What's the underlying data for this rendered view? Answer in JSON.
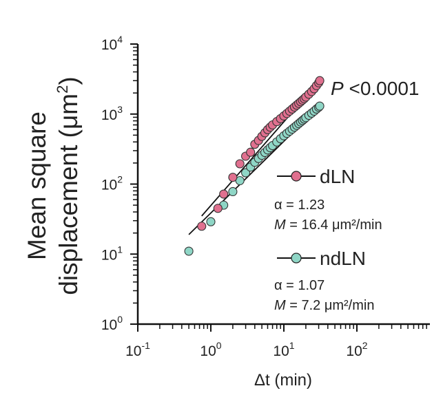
{
  "chart_data": {
    "type": "scatter",
    "xscale": "log",
    "yscale": "log",
    "xlim": [
      0.1,
      1000
    ],
    "ylim": [
      1,
      10000
    ],
    "xlabel": "Δt (min)",
    "ylabel_line1": "Mean square",
    "ylabel_line2": "displacement (μm",
    "ylabel_sup": "2",
    "ylabel_end": ")",
    "x_ticks": [
      {
        "value": 0.1,
        "base": "10",
        "exp": "-1"
      },
      {
        "value": 1,
        "base": "10",
        "exp": "0"
      },
      {
        "value": 10,
        "base": "10",
        "exp": "1"
      },
      {
        "value": 100,
        "base": "10",
        "exp": "2"
      }
    ],
    "y_ticks": [
      {
        "value": 1,
        "base": "10",
        "exp": "0"
      },
      {
        "value": 10,
        "base": "10",
        "exp": "1"
      },
      {
        "value": 100,
        "base": "10",
        "exp": "2"
      },
      {
        "value": 1000,
        "base": "10",
        "exp": "3"
      },
      {
        "value": 10000,
        "base": "10",
        "exp": "4"
      }
    ],
    "annotation": {
      "p_italic": "P",
      "p_rest": " <0.0001"
    },
    "series": [
      {
        "name": "dLN",
        "color": "#e0708f",
        "alpha_label": "α = 1.23",
        "m_italic": "M",
        "m_rest": " = 16.4 μm²/min",
        "points": [
          [
            0.75,
            25
          ],
          [
            1.25,
            45
          ],
          [
            1.5,
            72
          ],
          [
            2.0,
            125
          ],
          [
            2.5,
            195
          ],
          [
            3.0,
            250
          ],
          [
            3.5,
            285
          ],
          [
            4.0,
            370
          ],
          [
            4.5,
            420
          ],
          [
            5.0,
            480
          ],
          [
            5.5,
            540
          ],
          [
            6.0,
            600
          ],
          [
            6.5,
            650
          ],
          [
            7.0,
            700
          ],
          [
            8.0,
            780
          ],
          [
            9.0,
            860
          ],
          [
            10.0,
            940
          ],
          [
            11.0,
            1020
          ],
          [
            12.0,
            1100
          ],
          [
            13.0,
            1180
          ],
          [
            14.0,
            1260
          ],
          [
            15.0,
            1340
          ],
          [
            16.0,
            1420
          ],
          [
            17.0,
            1500
          ],
          [
            18.0,
            1580
          ],
          [
            19.0,
            1660
          ],
          [
            20.0,
            1750
          ],
          [
            22.0,
            1920
          ],
          [
            24.0,
            2100
          ],
          [
            26.0,
            2300
          ],
          [
            28.0,
            2550
          ],
          [
            30.0,
            2800
          ],
          [
            31.0,
            3000
          ]
        ],
        "fit": {
          "x_start": 0.75,
          "x_end": 31,
          "y_start": 35,
          "y_end": 3000
        }
      },
      {
        "name": "ndLN",
        "color": "#8fd6c6",
        "alpha_label": "α = 1.07",
        "m_italic": "M",
        "m_rest": " = 7.2 μm²/min",
        "points": [
          [
            0.5,
            11
          ],
          [
            1.0,
            29
          ],
          [
            1.5,
            50
          ],
          [
            2.0,
            78
          ],
          [
            2.5,
            112
          ],
          [
            3.0,
            145
          ],
          [
            3.5,
            175
          ],
          [
            4.0,
            205
          ],
          [
            4.5,
            232
          ],
          [
            5.0,
            258
          ],
          [
            5.5,
            283
          ],
          [
            6.0,
            308
          ],
          [
            6.5,
            332
          ],
          [
            7.0,
            355
          ],
          [
            8.0,
            400
          ],
          [
            9.0,
            445
          ],
          [
            10.0,
            490
          ],
          [
            11.0,
            530
          ],
          [
            12.0,
            570
          ],
          [
            13.0,
            610
          ],
          [
            14.0,
            650
          ],
          [
            15.0,
            690
          ],
          [
            16.0,
            730
          ],
          [
            17.0,
            770
          ],
          [
            18.0,
            810
          ],
          [
            19.0,
            850
          ],
          [
            20.0,
            890
          ],
          [
            22.0,
            960
          ],
          [
            24.0,
            1030
          ],
          [
            26.0,
            1100
          ],
          [
            28.0,
            1180
          ],
          [
            30.0,
            1250
          ],
          [
            31.0,
            1300
          ]
        ],
        "fit": {
          "x_start": 0.5,
          "x_end": 31,
          "y_start": 19,
          "y_end": 1300
        }
      }
    ],
    "grid": false,
    "legend_position": "right, inside plot"
  }
}
